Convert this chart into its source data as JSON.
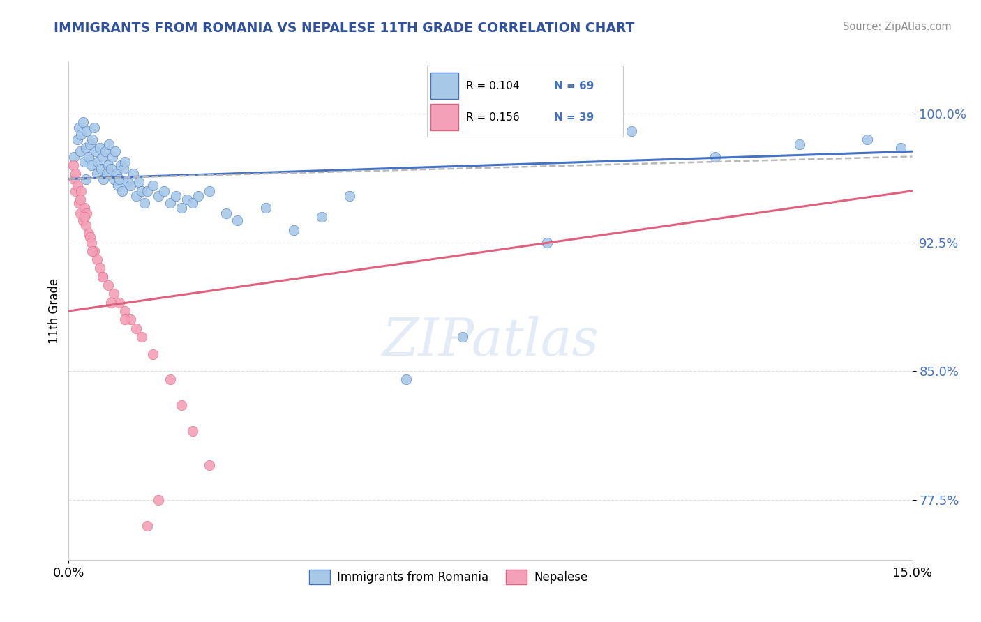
{
  "title": "IMMIGRANTS FROM ROMANIA VS NEPALESE 11TH GRADE CORRELATION CHART",
  "source": "Source: ZipAtlas.com",
  "ylabel": "11th Grade",
  "xlim": [
    0.0,
    15.0
  ],
  "ylim": [
    74.0,
    103.0
  ],
  "xtick_positions": [
    0.0,
    15.0
  ],
  "xtick_labels": [
    "0.0%",
    "15.0%"
  ],
  "ytick_values": [
    77.5,
    85.0,
    92.5,
    100.0
  ],
  "ytick_labels": [
    "77.5%",
    "85.0%",
    "92.5%",
    "100.0%"
  ],
  "watermark": "ZIPatlas",
  "legend_r1": "R = 0.104",
  "legend_n1": "N = 69",
  "legend_r2": "R = 0.156",
  "legend_n2": "N = 39",
  "legend_label1": "Immigrants from Romania",
  "legend_label2": "Nepalese",
  "color_blue": "#a8c8e8",
  "color_pink": "#f4a0b8",
  "color_blue_dark": "#4472c4",
  "color_pink_dark": "#e06080",
  "color_dashed": "#b8b8b8",
  "blue_scatter_x": [
    0.1,
    0.15,
    0.18,
    0.2,
    0.22,
    0.25,
    0.28,
    0.3,
    0.32,
    0.35,
    0.38,
    0.4,
    0.42,
    0.45,
    0.48,
    0.5,
    0.52,
    0.55,
    0.58,
    0.6,
    0.62,
    0.65,
    0.68,
    0.7,
    0.72,
    0.75,
    0.78,
    0.8,
    0.82,
    0.85,
    0.88,
    0.9,
    0.92,
    0.95,
    0.98,
    1.0,
    1.05,
    1.1,
    1.15,
    1.2,
    1.25,
    1.3,
    1.35,
    1.4,
    1.5,
    1.6,
    1.7,
    1.8,
    1.9,
    2.0,
    2.1,
    2.2,
    2.3,
    2.5,
    2.8,
    3.0,
    3.5,
    4.0,
    4.5,
    5.0,
    6.0,
    7.0,
    8.5,
    10.0,
    11.5,
    13.0,
    14.2,
    14.8,
    0.3
  ],
  "blue_scatter_y": [
    97.5,
    98.5,
    99.2,
    97.8,
    98.8,
    99.5,
    97.2,
    98.0,
    99.0,
    97.5,
    98.2,
    97.0,
    98.5,
    99.2,
    97.8,
    96.5,
    97.2,
    98.0,
    96.8,
    97.5,
    96.2,
    97.8,
    96.5,
    97.0,
    98.2,
    96.8,
    97.5,
    96.2,
    97.8,
    96.5,
    95.8,
    96.2,
    97.0,
    95.5,
    96.8,
    97.2,
    96.0,
    95.8,
    96.5,
    95.2,
    96.0,
    95.5,
    94.8,
    95.5,
    95.8,
    95.2,
    95.5,
    94.8,
    95.2,
    94.5,
    95.0,
    94.8,
    95.2,
    95.5,
    94.2,
    93.8,
    94.5,
    93.2,
    94.0,
    95.2,
    84.5,
    87.0,
    92.5,
    99.0,
    97.5,
    98.2,
    98.5,
    98.0,
    96.2
  ],
  "pink_scatter_x": [
    0.08,
    0.1,
    0.12,
    0.15,
    0.18,
    0.2,
    0.22,
    0.25,
    0.28,
    0.3,
    0.32,
    0.35,
    0.38,
    0.4,
    0.45,
    0.5,
    0.55,
    0.6,
    0.7,
    0.8,
    0.9,
    1.0,
    1.1,
    1.2,
    1.3,
    1.5,
    1.8,
    2.0,
    2.2,
    2.5,
    0.12,
    0.2,
    0.28,
    0.42,
    0.6,
    0.75,
    1.0,
    1.4,
    1.6
  ],
  "pink_scatter_y": [
    97.0,
    96.2,
    95.5,
    95.8,
    94.8,
    94.2,
    95.5,
    93.8,
    94.5,
    93.5,
    94.2,
    93.0,
    92.8,
    92.5,
    92.0,
    91.5,
    91.0,
    90.5,
    90.0,
    89.5,
    89.0,
    88.5,
    88.0,
    87.5,
    87.0,
    86.0,
    84.5,
    83.0,
    81.5,
    79.5,
    96.5,
    95.0,
    94.0,
    92.0,
    90.5,
    89.0,
    88.0,
    76.0,
    77.5
  ],
  "blue_trend_x": [
    0.0,
    15.0
  ],
  "blue_trend_y": [
    96.2,
    97.8
  ],
  "pink_trend_x": [
    0.0,
    15.0
  ],
  "pink_trend_y": [
    88.5,
    95.5
  ],
  "dashed_trend_x": [
    0.0,
    15.0
  ],
  "dashed_trend_y": [
    96.2,
    97.5
  ]
}
